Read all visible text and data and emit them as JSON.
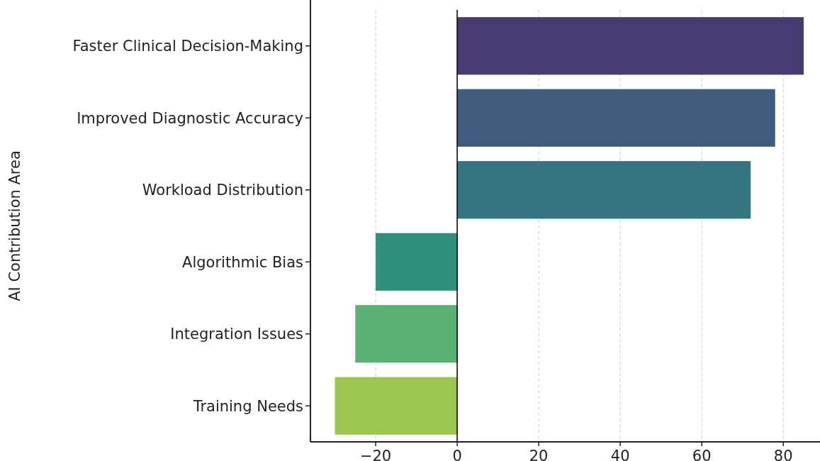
{
  "chart_data": {
    "type": "bar",
    "orientation": "horizontal",
    "ylabel": "AI Contribution Area",
    "categories": [
      "Faster Clinical Decision-Making",
      "Improved Diagnostic Accuracy",
      "Workload Distribution",
      "Algorithmic Bias",
      "Integration Issues",
      "Training Needs"
    ],
    "values": [
      85,
      78,
      72,
      -20,
      -25,
      -30
    ],
    "colors": [
      "#4a3a72",
      "#405b7e",
      "#357580",
      "#2f917c",
      "#59b173",
      "#9dc64f"
    ],
    "xlim": [
      -36,
      89
    ],
    "xticks": [
      -20,
      0,
      20,
      40,
      60,
      80
    ],
    "grid": "x",
    "ref_lines": [
      {
        "axis": "x",
        "value": 0,
        "color": "#000000"
      }
    ]
  }
}
